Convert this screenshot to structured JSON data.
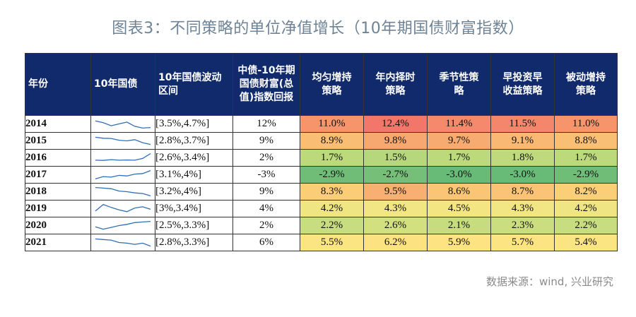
{
  "title": "图表3：不同策略的单位净值增长（10年期国债财富指数）",
  "headers": {
    "year": "年份",
    "bond": "10年国债",
    "range": "10年国债波动区间",
    "index": "中债-10年期国债财富(总值)指数回报",
    "s1": "均匀增持策略",
    "s2": "年内择时策略",
    "s3": "季节性策略",
    "s4": "早投资早收益策略",
    "s5": "被动增持策略"
  },
  "rows": [
    {
      "year": "2014",
      "range": "[3.5%,4.7%]",
      "index": "12%",
      "values": [
        "11.0%",
        "12.4%",
        "11.4%",
        "11.5%",
        "11.0%"
      ],
      "colors": [
        "#f6946c",
        "#f2766a",
        "#f4896b",
        "#f4876b",
        "#f6946c"
      ],
      "trend": [
        0.75,
        0.6,
        0.35,
        0.5,
        0.65,
        0.3,
        0.15,
        0.2
      ]
    },
    {
      "year": "2015",
      "range": "[2.8%,3.7%]",
      "index": "9%",
      "values": [
        "8.9%",
        "9.8%",
        "9.7%",
        "9.1%",
        "8.8%"
      ],
      "colors": [
        "#f9be74",
        "#f7a871",
        "#f8ab71",
        "#f9b873",
        "#f9c075"
      ],
      "trend": [
        0.8,
        0.72,
        0.7,
        0.55,
        0.5,
        0.6,
        0.35,
        0.2
      ]
    },
    {
      "year": "2016",
      "range": "[2.6%,3.4%]",
      "index": "2%",
      "values": [
        "1.7%",
        "1.5%",
        "1.7%",
        "1.8%",
        "1.7%"
      ],
      "colors": [
        "#bcd97c",
        "#b7d77c",
        "#bcd97c",
        "#bfda7d",
        "#bcd97c"
      ],
      "trend": [
        0.3,
        0.28,
        0.35,
        0.3,
        0.32,
        0.3,
        0.45,
        0.85
      ]
    },
    {
      "year": "2017",
      "range": "[3.1%,4%]",
      "index": "-3%",
      "values": [
        "-2.9%",
        "-2.7%",
        "-3.0%",
        "-3.0%",
        "-2.9%"
      ],
      "colors": [
        "#70bd78",
        "#75bf79",
        "#68bb77",
        "#68bb77",
        "#70bd78"
      ],
      "trend": [
        0.15,
        0.35,
        0.3,
        0.45,
        0.4,
        0.55,
        0.6,
        0.85
      ]
    },
    {
      "year": "2018",
      "range": "[3.2%,4%]",
      "index": "9%",
      "values": [
        "8.3%",
        "9.5%",
        "8.6%",
        "8.7%",
        "8.2%"
      ],
      "colors": [
        "#fbcd77",
        "#f8af72",
        "#fac575",
        "#fac375",
        "#fbcf77"
      ],
      "trend": [
        0.85,
        0.8,
        0.75,
        0.55,
        0.5,
        0.4,
        0.35,
        0.15
      ]
    },
    {
      "year": "2019",
      "range": "[3%,3.4%]",
      "index": "4%",
      "values": [
        "4.2%",
        "4.3%",
        "4.5%",
        "4.3%",
        "4.2%"
      ],
      "colors": [
        "#f0e583",
        "#f2e583",
        "#f4e583",
        "#f2e583",
        "#f0e583"
      ],
      "trend": [
        0.3,
        0.85,
        0.6,
        0.4,
        0.25,
        0.55,
        0.65,
        0.45
      ]
    },
    {
      "year": "2020",
      "range": "[2.5%,3.3%]",
      "index": "2%",
      "values": [
        "2.2%",
        "2.6%",
        "2.1%",
        "2.3%",
        "2.2%"
      ],
      "colors": [
        "#c8dd7f",
        "#d3e080",
        "#c6dc7f",
        "#cbde7f",
        "#c8dd7f"
      ],
      "trend": [
        0.4,
        0.2,
        0.35,
        0.5,
        0.6,
        0.75,
        0.8,
        0.85
      ]
    },
    {
      "year": "2021",
      "range": "[2.8%,3.3%]",
      "index": "6%",
      "values": [
        "5.5%",
        "6.2%",
        "5.9%",
        "5.7%",
        "5.4%"
      ],
      "colors": [
        "#fbe582",
        "#fde282",
        "#fde382",
        "#fce482",
        "#fae582"
      ],
      "trend": [
        0.8,
        0.75,
        0.7,
        0.5,
        0.45,
        0.35,
        0.45,
        0.2
      ]
    }
  ],
  "source": "数据来源：wind, 兴业研究"
}
